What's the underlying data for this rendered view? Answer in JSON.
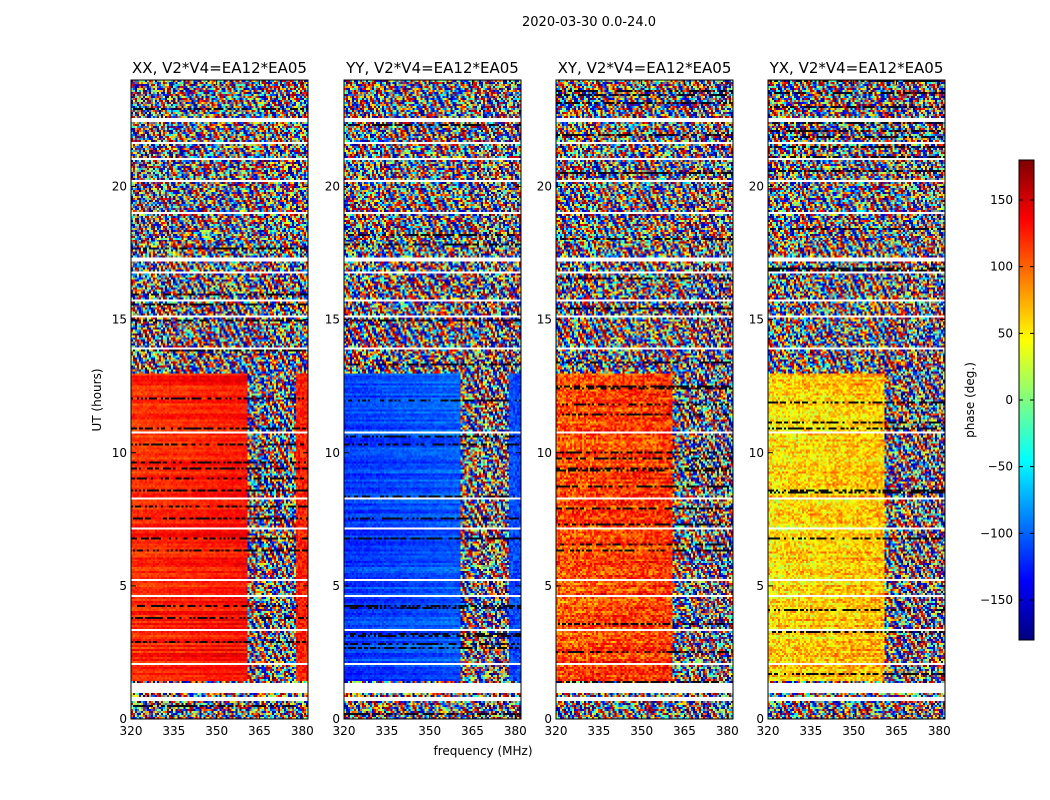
{
  "figure": {
    "suptitle": "2020-03-30 0.0-24.0",
    "width": 1050,
    "height": 800
  },
  "chart_data": {
    "type": "heatmap",
    "ylabel": "UT (hours)",
    "xlabel": "frequency (MHz)",
    "xlim": [
      320,
      382
    ],
    "ylim": [
      0,
      24
    ],
    "xticks": [
      "320",
      "335",
      "350",
      "365",
      "380"
    ],
    "xtick_values": [
      320,
      335,
      350,
      365,
      380
    ],
    "yticks": [
      "0",
      "5",
      "10",
      "15",
      "20"
    ],
    "ytick_values": [
      0,
      5,
      10,
      15,
      20
    ],
    "colorbar": {
      "label": "phase (deg.)",
      "range": [
        -180,
        180
      ],
      "ticks": [
        "−150",
        "−100",
        "−50",
        "0",
        "50",
        "100",
        "150"
      ],
      "tick_values": [
        -150,
        -100,
        -50,
        0,
        50,
        100,
        150
      ],
      "colormap": "jet",
      "colors": [
        "#00007f",
        "#0000ff",
        "#007fff",
        "#00ffff",
        "#7fff7f",
        "#ffff00",
        "#ff7f00",
        "#ff0000",
        "#7f0000"
      ]
    },
    "band_split_mhz": 360.5,
    "flagged_hours": [
      [
        0.7,
        0.8
      ],
      [
        1.0,
        1.35
      ],
      [
        2.05,
        2.1
      ],
      [
        2.6,
        2.65
      ],
      [
        3.3,
        3.35
      ],
      [
        3.95,
        4.0
      ],
      [
        4.6,
        4.65
      ],
      [
        5.2,
        5.25
      ],
      [
        5.9,
        5.95
      ],
      [
        6.5,
        6.55
      ],
      [
        7.1,
        7.2
      ],
      [
        8.25,
        8.3
      ],
      [
        8.9,
        8.95
      ],
      [
        10.7,
        10.8
      ],
      [
        12.5,
        12.55
      ],
      [
        13.9,
        13.95
      ],
      [
        15.05,
        15.15
      ],
      [
        15.7,
        15.75
      ],
      [
        16.75,
        16.8
      ],
      [
        17.2,
        17.3
      ],
      [
        18.5,
        18.55
      ],
      [
        19.0,
        19.05
      ],
      [
        20.2,
        20.25
      ],
      [
        21.0,
        21.05
      ],
      [
        21.6,
        21.65
      ],
      [
        22.1,
        22.15
      ],
      [
        22.45,
        22.55
      ]
    ],
    "panels": [
      {
        "title": "XX, V2*V4=EA12*EA05",
        "low_band_phase_deg": 125,
        "high_band_note": "noisy"
      },
      {
        "title": "YY, V2*V4=EA12*EA05",
        "low_band_phase_deg": -110,
        "high_band_note": "noisy"
      },
      {
        "title": "XY, V2*V4=EA12*EA05",
        "low_band_phase_deg": 110,
        "high_band_note": "noisy"
      },
      {
        "title": "YX, V2*V4=EA12*EA05",
        "low_band_phase_deg": 60,
        "high_band_note": "noisy"
      }
    ]
  }
}
